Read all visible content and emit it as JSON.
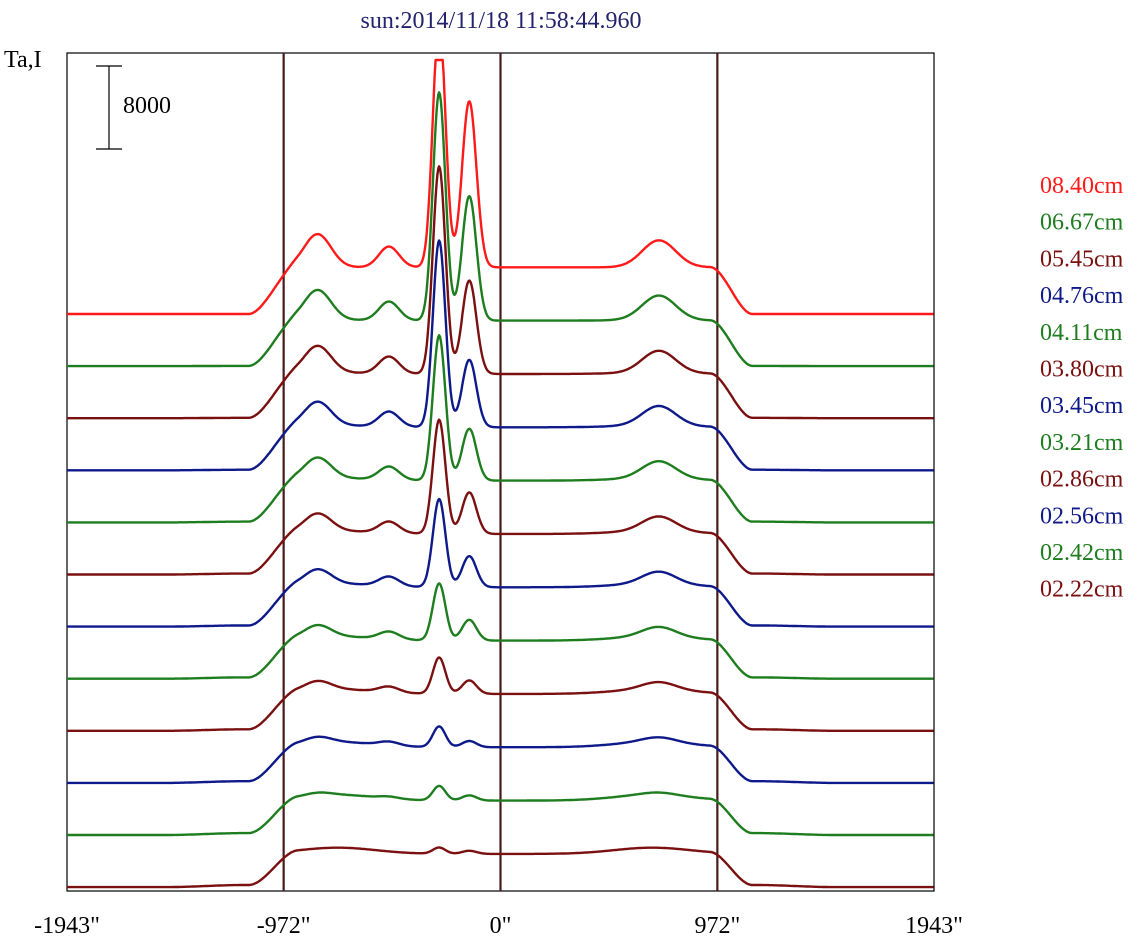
{
  "chart_data": {
    "type": "line",
    "title": "sun:2014/11/18 11:58:44.960",
    "ylabel": "Ta,I",
    "scale_bar": {
      "label": "8000",
      "value": 8000
    },
    "x_ticks": [
      {
        "value": -1943,
        "label": "-1943\""
      },
      {
        "value": -972,
        "label": "-972\""
      },
      {
        "value": 0,
        "label": "0\""
      },
      {
        "value": 972,
        "label": "972\""
      },
      {
        "value": 1943,
        "label": "1943\""
      }
    ],
    "xlim": [
      -1943,
      1943
    ],
    "vlines": [
      -972,
      0,
      972
    ],
    "legend_position": "right",
    "series": [
      {
        "name": "08.40cm",
        "color": "#ff1a1a",
        "peak1": 24000,
        "peak2": 16000
      },
      {
        "name": "06.67cm",
        "color": "#1e7d1e",
        "peak1": 22000,
        "peak2": 12000
      },
      {
        "name": "05.45cm",
        "color": "#7a1010",
        "peak1": 20000,
        "peak2": 9000
      },
      {
        "name": "04.76cm",
        "color": "#0f1a8a",
        "peak1": 18000,
        "peak2": 6500
      },
      {
        "name": "04.11cm",
        "color": "#1e7d1e",
        "peak1": 14000,
        "peak2": 5000
      },
      {
        "name": "03.80cm",
        "color": "#7a1010",
        "peak1": 11000,
        "peak2": 4000
      },
      {
        "name": "03.45cm",
        "color": "#0f1a8a",
        "peak1": 8500,
        "peak2": 3000
      },
      {
        "name": "03.21cm",
        "color": "#1e7d1e",
        "peak1": 5500,
        "peak2": 2000
      },
      {
        "name": "02.86cm",
        "color": "#7a1010",
        "peak1": 3500,
        "peak2": 1300
      },
      {
        "name": "02.56cm",
        "color": "#0f1a8a",
        "peak1": 2000,
        "peak2": 600
      },
      {
        "name": "02.42cm",
        "color": "#1e7d1e",
        "peak1": 1400,
        "peak2": 500
      },
      {
        "name": "02.22cm",
        "color": "#7a1010",
        "peak1": 600,
        "peak2": 300
      }
    ]
  }
}
